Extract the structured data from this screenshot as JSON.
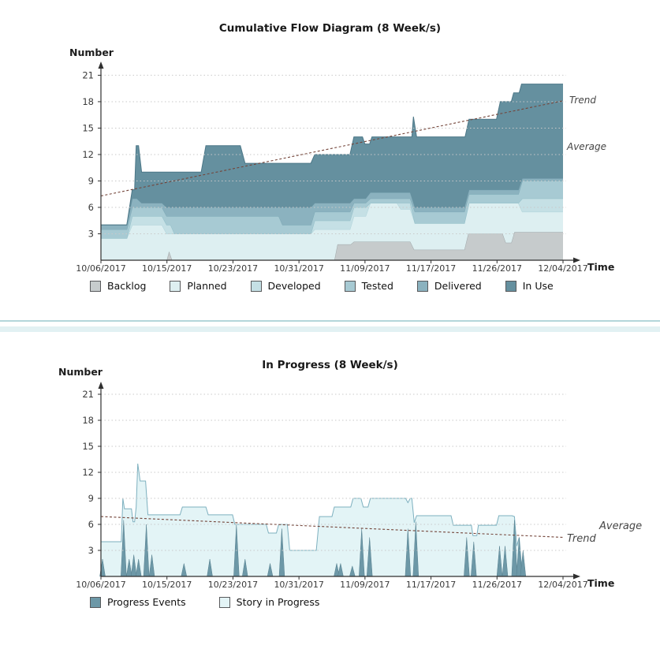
{
  "chart_data": [
    {
      "type": "area",
      "variant": "stacked-boundaries",
      "title": "Cumulative Flow Diagram (8 Week/s)",
      "y_axis_label": "Number",
      "x_axis_label": "Time",
      "y_ticks": [
        3,
        6,
        9,
        12,
        15,
        18,
        21
      ],
      "ylim": [
        0,
        22
      ],
      "x_ticks": [
        "10/06/2017",
        "10/15/2017",
        "10/23/2017",
        "10/31/2017",
        "11/09/2017",
        "11/17/2017",
        "11/26/2017",
        "12/04/2017"
      ],
      "day_max": 59,
      "grid": true,
      "series": [
        {
          "name": "Backlog",
          "color": "#c6cbcc",
          "stroke": "#9fa7a9",
          "points": [
            [
              0,
              0
            ],
            [
              8.4,
              0
            ],
            [
              8.7,
              1
            ],
            [
              9.1,
              0
            ],
            [
              29.8,
              0
            ],
            [
              30.2,
              1.8
            ],
            [
              31.9,
              1.8
            ],
            [
              32.3,
              2.1
            ],
            [
              39.5,
              2.1
            ],
            [
              40,
              1.2
            ],
            [
              46.4,
              1.2
            ],
            [
              46.9,
              3
            ],
            [
              51.3,
              3
            ],
            [
              51.7,
              2
            ],
            [
              52.4,
              2
            ],
            [
              52.8,
              3.2
            ],
            [
              59,
              3.2
            ]
          ]
        },
        {
          "name": "Planned",
          "color": "#ddeff1",
          "stroke": "#aed3da",
          "points": [
            [
              0,
              2.5
            ],
            [
              3.3,
              2.5
            ],
            [
              4,
              4
            ],
            [
              7.8,
              4
            ],
            [
              8.4,
              3
            ],
            [
              26.8,
              3
            ],
            [
              27.3,
              3.5
            ],
            [
              31.8,
              3.5
            ],
            [
              32.3,
              5
            ],
            [
              33.8,
              5
            ],
            [
              34.4,
              6.5
            ],
            [
              37.8,
              6.5
            ],
            [
              38.3,
              5.8
            ],
            [
              39.5,
              5.8
            ],
            [
              40.1,
              4.2
            ],
            [
              46.4,
              4.2
            ],
            [
              47,
              6.5
            ],
            [
              53.3,
              6.5
            ],
            [
              53.8,
              5.5
            ],
            [
              59,
              5.5
            ]
          ]
        },
        {
          "name": "Developed",
          "color": "#c5e0e5",
          "stroke": "#92bec8",
          "points": [
            [
              0,
              2.5
            ],
            [
              3.3,
              2.5
            ],
            [
              4,
              5
            ],
            [
              7.8,
              5
            ],
            [
              8.4,
              4
            ],
            [
              8.9,
              4
            ],
            [
              9.4,
              3
            ],
            [
              26.8,
              3
            ],
            [
              27.3,
              4.5
            ],
            [
              31.8,
              4.5
            ],
            [
              32.3,
              6
            ],
            [
              33.8,
              6
            ],
            [
              34.4,
              6.5
            ],
            [
              39.5,
              6.5
            ],
            [
              40.1,
              4.2
            ],
            [
              46.4,
              4.2
            ],
            [
              47,
              6.5
            ],
            [
              53.3,
              6.5
            ],
            [
              53.8,
              7
            ],
            [
              59,
              7
            ]
          ]
        },
        {
          "name": "Tested",
          "color": "#a7cad3",
          "stroke": "#7da9b6",
          "points": [
            [
              0,
              3.5
            ],
            [
              3.3,
              3.5
            ],
            [
              4,
              6
            ],
            [
              7.8,
              6
            ],
            [
              8.4,
              5
            ],
            [
              22.7,
              5
            ],
            [
              23.2,
              4
            ],
            [
              26.8,
              4
            ],
            [
              27.3,
              5.5
            ],
            [
              31.8,
              5.5
            ],
            [
              32.3,
              6.5
            ],
            [
              33.8,
              6.5
            ],
            [
              34.4,
              7
            ],
            [
              39.5,
              7
            ],
            [
              40.1,
              5.5
            ],
            [
              46.4,
              5.5
            ],
            [
              47,
              7.5
            ],
            [
              53.3,
              7.5
            ],
            [
              53.8,
              9
            ],
            [
              59,
              9
            ]
          ]
        },
        {
          "name": "Delivered",
          "color": "#8bb2bf",
          "stroke": "#6a95a4",
          "points": [
            [
              0,
              4
            ],
            [
              3.3,
              4
            ],
            [
              4,
              7
            ],
            [
              4.6,
              7
            ],
            [
              5.2,
              6.5
            ],
            [
              7.8,
              6.5
            ],
            [
              8.4,
              6
            ],
            [
              26.8,
              6
            ],
            [
              27.3,
              6.5
            ],
            [
              31.8,
              6.5
            ],
            [
              32.3,
              7
            ],
            [
              33.8,
              7
            ],
            [
              34.4,
              7.7
            ],
            [
              39.5,
              7.7
            ],
            [
              40.1,
              6
            ],
            [
              46.4,
              6
            ],
            [
              47,
              8
            ],
            [
              53.3,
              8
            ],
            [
              53.8,
              9.3
            ],
            [
              59,
              9.3
            ]
          ]
        },
        {
          "name": "In Use",
          "color": "#65909f",
          "stroke": "#4c7787",
          "points": [
            [
              0,
              4
            ],
            [
              3.3,
              4
            ],
            [
              4,
              8
            ],
            [
              4.3,
              8
            ],
            [
              4.5,
              13
            ],
            [
              4.8,
              13
            ],
            [
              5.2,
              10
            ],
            [
              12.8,
              10
            ],
            [
              13.4,
              13
            ],
            [
              17.8,
              13
            ],
            [
              18.4,
              11
            ],
            [
              26.8,
              11
            ],
            [
              27.3,
              12
            ],
            [
              31.8,
              12
            ],
            [
              32.3,
              14
            ],
            [
              33.4,
              14
            ],
            [
              33.7,
              13.2
            ],
            [
              34.3,
              13.2
            ],
            [
              34.6,
              14
            ],
            [
              39.7,
              14
            ],
            [
              39.9,
              16.3
            ],
            [
              40.3,
              14
            ],
            [
              46.5,
              14
            ],
            [
              47,
              16
            ],
            [
              50.5,
              16
            ],
            [
              51,
              18
            ],
            [
              52.4,
              18
            ],
            [
              52.7,
              19
            ],
            [
              53.4,
              19
            ],
            [
              53.7,
              20
            ],
            [
              59,
              20
            ]
          ]
        }
      ],
      "trend": {
        "label": "Trend",
        "color": "#74453a",
        "from": [
          0,
          7.3
        ],
        "to": [
          59,
          18.1
        ]
      },
      "average": {
        "label": "Average",
        "value": 12.9
      },
      "legend": [
        "Backlog",
        "Planned",
        "Developed",
        "Tested",
        "Delivered",
        "In Use"
      ]
    },
    {
      "type": "area",
      "variant": "area-with-spikes",
      "title": "In Progress (8 Week/s)",
      "y_axis_label": "Number",
      "x_axis_label": "Time",
      "y_ticks": [
        3,
        6,
        9,
        12,
        15,
        18,
        21
      ],
      "ylim": [
        0,
        22
      ],
      "x_ticks": [
        "10/06/2017",
        "10/15/2017",
        "10/23/2017",
        "10/31/2017",
        "11/09/2017",
        "11/17/2017",
        "11/26/2017",
        "12/04/2017"
      ],
      "day_max": 59,
      "grid": true,
      "story": {
        "name": "Story in Progress",
        "color": "#e3f4f6",
        "stroke": "#7db0bf",
        "points": [
          [
            0,
            4
          ],
          [
            2.6,
            4
          ],
          [
            2.8,
            9
          ],
          [
            3,
            7.8
          ],
          [
            3.9,
            7.8
          ],
          [
            4.1,
            6.3
          ],
          [
            4.3,
            6.3
          ],
          [
            4.5,
            8
          ],
          [
            4.7,
            13
          ],
          [
            5,
            11
          ],
          [
            5.7,
            11
          ],
          [
            6,
            7.1
          ],
          [
            10.1,
            7.1
          ],
          [
            10.4,
            8
          ],
          [
            13.4,
            8
          ],
          [
            13.7,
            7.1
          ],
          [
            16.8,
            7.1
          ],
          [
            17.1,
            6
          ],
          [
            21.1,
            6
          ],
          [
            21.4,
            5
          ],
          [
            22.4,
            5
          ],
          [
            22.7,
            6
          ],
          [
            23.8,
            6
          ],
          [
            24.1,
            3
          ],
          [
            27.5,
            3
          ],
          [
            27.9,
            6.9
          ],
          [
            29.5,
            6.9
          ],
          [
            29.8,
            8
          ],
          [
            31.9,
            8
          ],
          [
            32.2,
            9
          ],
          [
            33.2,
            9
          ],
          [
            33.5,
            8
          ],
          [
            34.1,
            8
          ],
          [
            34.4,
            9
          ],
          [
            38.9,
            9
          ],
          [
            39.2,
            8.5
          ],
          [
            39.5,
            9
          ],
          [
            39.7,
            9
          ],
          [
            40,
            6.2
          ],
          [
            40.3,
            7
          ],
          [
            44.7,
            7
          ],
          [
            45,
            5.9
          ],
          [
            47.3,
            5.9
          ],
          [
            47.5,
            4.7
          ],
          [
            48,
            4.7
          ],
          [
            48.2,
            5.9
          ],
          [
            50.5,
            5.9
          ],
          [
            50.8,
            7
          ],
          [
            52.5,
            7
          ],
          [
            52.8,
            6.9
          ],
          [
            53.1,
            3.5
          ],
          [
            53.4,
            4.5
          ],
          [
            53.8,
            0
          ]
        ]
      },
      "events": {
        "name": "Progress Events",
        "color": "#6d98a7",
        "stroke": "#57808f",
        "spikes": [
          [
            0.2,
            2
          ],
          [
            2.9,
            6.5
          ],
          [
            3.6,
            2
          ],
          [
            4.2,
            2.5
          ],
          [
            4.8,
            2
          ],
          [
            5.8,
            6
          ],
          [
            6.5,
            2.5
          ],
          [
            10.6,
            1.5
          ],
          [
            13.9,
            2
          ],
          [
            17.3,
            6
          ],
          [
            18.4,
            2
          ],
          [
            21.6,
            1.5
          ],
          [
            23.1,
            5.5
          ],
          [
            30.1,
            1.5
          ],
          [
            30.6,
            1.5
          ],
          [
            32.1,
            1.2
          ],
          [
            33.3,
            5.5
          ],
          [
            34.3,
            4.5
          ],
          [
            39.2,
            5.5
          ],
          [
            40.2,
            6.3
          ],
          [
            46.7,
            4.5
          ],
          [
            47.6,
            4
          ],
          [
            50.9,
            3.5
          ],
          [
            51.6,
            3.5
          ],
          [
            52.8,
            6.5
          ],
          [
            53.4,
            4.5
          ],
          [
            53.9,
            3
          ]
        ]
      },
      "trend": {
        "label": "Trend",
        "color": "#74453a",
        "from": [
          0,
          6.9
        ],
        "to": [
          59,
          4.5
        ]
      },
      "average": {
        "label": "Average",
        "value": 5.6
      },
      "legend": [
        "Progress Events",
        "Story in Progress"
      ]
    }
  ],
  "divider": {
    "color_top": "#b4d6da",
    "color_bottom": "#e2f1f3"
  }
}
